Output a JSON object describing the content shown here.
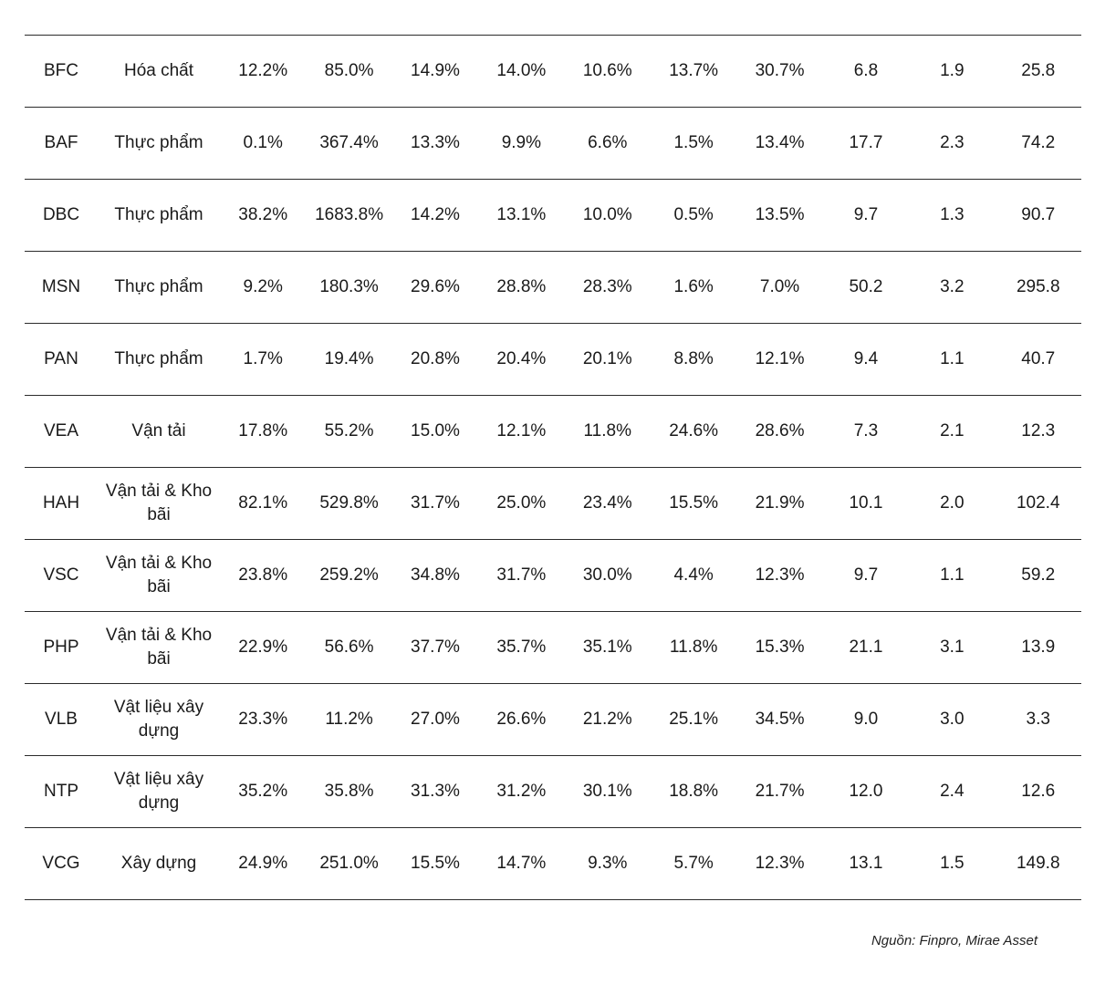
{
  "rows": [
    {
      "ticker": "BFC",
      "sector": "Hóa chất",
      "values": [
        "12.2%",
        "85.0%",
        "14.9%",
        "14.0%",
        "10.6%",
        "13.7%",
        "30.7%",
        "6.8",
        "1.9",
        "25.8"
      ]
    },
    {
      "ticker": "BAF",
      "sector": "Thực phẩm",
      "values": [
        "0.1%",
        "367.4%",
        "13.3%",
        "9.9%",
        "6.6%",
        "1.5%",
        "13.4%",
        "17.7",
        "2.3",
        "74.2"
      ]
    },
    {
      "ticker": "DBC",
      "sector": "Thực phẩm",
      "values": [
        "38.2%",
        "1683.8%",
        "14.2%",
        "13.1%",
        "10.0%",
        "0.5%",
        "13.5%",
        "9.7",
        "1.3",
        "90.7"
      ]
    },
    {
      "ticker": "MSN",
      "sector": "Thực phẩm",
      "values": [
        "9.2%",
        "180.3%",
        "29.6%",
        "28.8%",
        "28.3%",
        "1.6%",
        "7.0%",
        "50.2",
        "3.2",
        "295.8"
      ]
    },
    {
      "ticker": "PAN",
      "sector": "Thực phẩm",
      "values": [
        "1.7%",
        "19.4%",
        "20.8%",
        "20.4%",
        "20.1%",
        "8.8%",
        "12.1%",
        "9.4",
        "1.1",
        "40.7"
      ]
    },
    {
      "ticker": "VEA",
      "sector": "Vận tải",
      "values": [
        "17.8%",
        "55.2%",
        "15.0%",
        "12.1%",
        "11.8%",
        "24.6%",
        "28.6%",
        "7.3",
        "2.1",
        "12.3"
      ]
    },
    {
      "ticker": "HAH",
      "sector": "Vận tải & Kho bãi",
      "values": [
        "82.1%",
        "529.8%",
        "31.7%",
        "25.0%",
        "23.4%",
        "15.5%",
        "21.9%",
        "10.1",
        "2.0",
        "102.4"
      ]
    },
    {
      "ticker": "VSC",
      "sector": "Vận tải & Kho bãi",
      "values": [
        "23.8%",
        "259.2%",
        "34.8%",
        "31.7%",
        "30.0%",
        "4.4%",
        "12.3%",
        "9.7",
        "1.1",
        "59.2"
      ]
    },
    {
      "ticker": "PHP",
      "sector": "Vận tải & Kho bãi",
      "values": [
        "22.9%",
        "56.6%",
        "37.7%",
        "35.7%",
        "35.1%",
        "11.8%",
        "15.3%",
        "21.1",
        "3.1",
        "13.9"
      ]
    },
    {
      "ticker": "VLB",
      "sector": "Vật liệu xây dựng",
      "values": [
        "23.3%",
        "11.2%",
        "27.0%",
        "26.6%",
        "21.2%",
        "25.1%",
        "34.5%",
        "9.0",
        "3.0",
        "3.3"
      ]
    },
    {
      "ticker": "NTP",
      "sector": "Vật liệu xây dựng",
      "values": [
        "35.2%",
        "35.8%",
        "31.3%",
        "31.2%",
        "30.1%",
        "18.8%",
        "21.7%",
        "12.0",
        "2.4",
        "12.6"
      ]
    },
    {
      "ticker": "VCG",
      "sector": "Xây dựng",
      "values": [
        "24.9%",
        "251.0%",
        "15.5%",
        "14.7%",
        "9.3%",
        "5.7%",
        "12.3%",
        "13.1",
        "1.5",
        "149.8"
      ]
    }
  ],
  "source": "Nguồn: Finpro, Mirae Asset"
}
